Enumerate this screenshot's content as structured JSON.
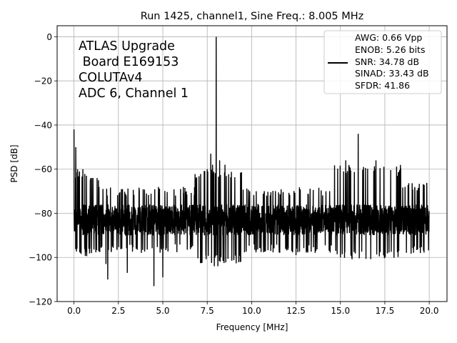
{
  "chart_data": {
    "type": "line",
    "title": "Run 1425, channel1, Sine Freq.: 8.005 MHz",
    "xlabel": "Frequency [MHz]",
    "ylabel": "PSD [dB]",
    "xlim": [
      -0.95,
      21.0
    ],
    "ylim": [
      -120,
      5
    ],
    "xticks": [
      0.0,
      2.5,
      5.0,
      7.5,
      10.0,
      12.5,
      15.0,
      17.5,
      20.0
    ],
    "xtick_labels": [
      "0.0",
      "2.5",
      "5.0",
      "7.5",
      "10.0",
      "12.5",
      "15.0",
      "17.5",
      "20.0"
    ],
    "yticks": [
      0,
      -20,
      -40,
      -60,
      -80,
      -100,
      -120
    ],
    "ytick_labels": [
      "0",
      "−20",
      "−40",
      "−60",
      "−80",
      "−100",
      "−120"
    ],
    "grid": true,
    "line_color": "#000000",
    "annotation_lines": [
      "ATLAS Upgrade",
      " Board E169153",
      "COLUTAv4",
      "ADC 6, Channel 1"
    ],
    "legend": {
      "placement": "top-right",
      "lines": [
        "AWG: 0.66 Vpp",
        "ENOB: 5.26 bits",
        "SNR: 34.78 dB",
        "SINAD: 33.43 dB",
        "SFDR: 41.86"
      ]
    },
    "series": [
      {
        "name": "PSD",
        "noise_floor_db": -83,
        "fundamental": {
          "x": 8.005,
          "y": 0
        },
        "features": [
          {
            "x": 0.0,
            "y": -42
          },
          {
            "x": 0.1,
            "y": -50
          },
          {
            "x": 0.2,
            "y": -60
          },
          {
            "x": 0.3,
            "y": -62
          },
          {
            "x": 0.5,
            "y": -60
          },
          {
            "x": 0.7,
            "y": -63
          },
          {
            "x": 1.0,
            "y": -64
          },
          {
            "x": 1.3,
            "y": -64
          },
          {
            "x": 1.8,
            "y": -103
          },
          {
            "x": 1.9,
            "y": -110
          },
          {
            "x": 3.0,
            "y": -107
          },
          {
            "x": 4.5,
            "y": -113
          },
          {
            "x": 5.0,
            "y": -109
          },
          {
            "x": 7.5,
            "y": -60
          },
          {
            "x": 7.7,
            "y": -53
          },
          {
            "x": 7.8,
            "y": -58
          },
          {
            "x": 7.9,
            "y": -104
          },
          {
            "x": 8.1,
            "y": -104
          },
          {
            "x": 8.2,
            "y": -56
          },
          {
            "x": 8.5,
            "y": -58
          },
          {
            "x": 12.5,
            "y": -99
          },
          {
            "x": 15.0,
            "y": -100
          },
          {
            "x": 15.3,
            "y": -56
          },
          {
            "x": 16.0,
            "y": -44
          },
          {
            "x": 16.3,
            "y": -59
          },
          {
            "x": 17.0,
            "y": -56
          },
          {
            "x": 17.5,
            "y": -100
          },
          {
            "x": 18.2,
            "y": -63
          },
          {
            "x": 19.5,
            "y": -98
          },
          {
            "x": 20.0,
            "y": -79
          }
        ]
      }
    ]
  }
}
